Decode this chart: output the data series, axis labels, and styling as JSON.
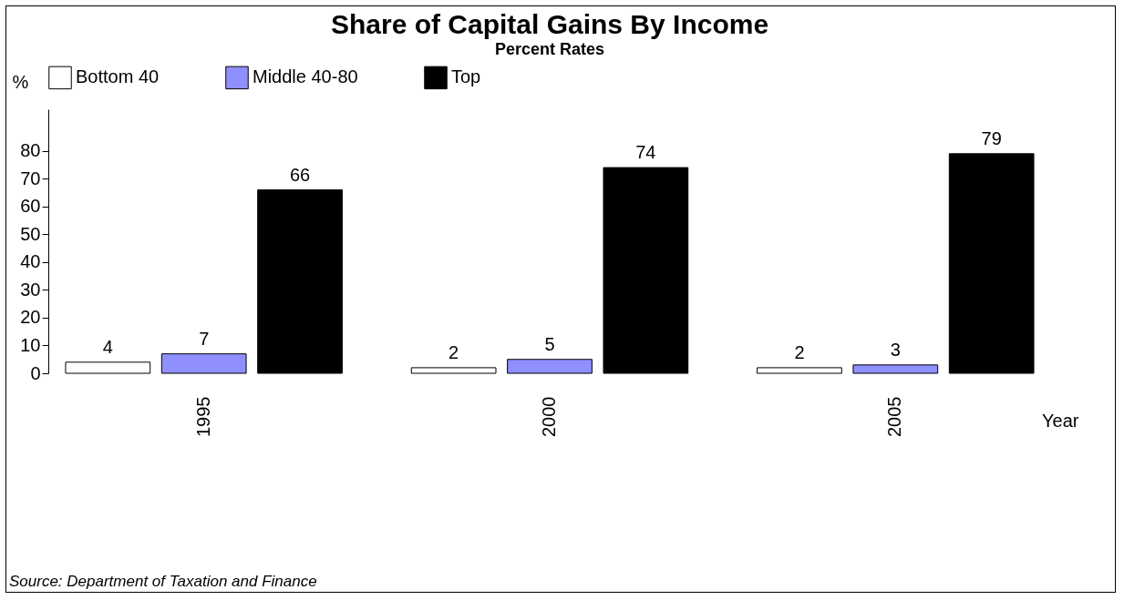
{
  "chart_data": {
    "type": "bar",
    "title": "Share of Capital Gains By Income",
    "subtitle": "Percent Rates",
    "xlabel": "Year",
    "ylabel": "%",
    "categories": [
      "1995",
      "2000",
      "2005"
    ],
    "series": [
      {
        "name": "Bottom 40",
        "color": "#ffffff",
        "values": [
          4,
          2,
          2
        ]
      },
      {
        "name": "Middle 40-80",
        "color": "#8f8fff",
        "values": [
          7,
          5,
          3
        ]
      },
      {
        "name": "Top",
        "color": "#000000",
        "values": [
          66,
          74,
          79
        ]
      }
    ],
    "ylim": [
      0,
      95
    ],
    "yticks": [
      0,
      10,
      20,
      30,
      40,
      50,
      60,
      70,
      80
    ],
    "grid": false,
    "legend": "top",
    "data_labels": true,
    "annotations": [
      "Source: Department of Taxation and Finance"
    ]
  }
}
